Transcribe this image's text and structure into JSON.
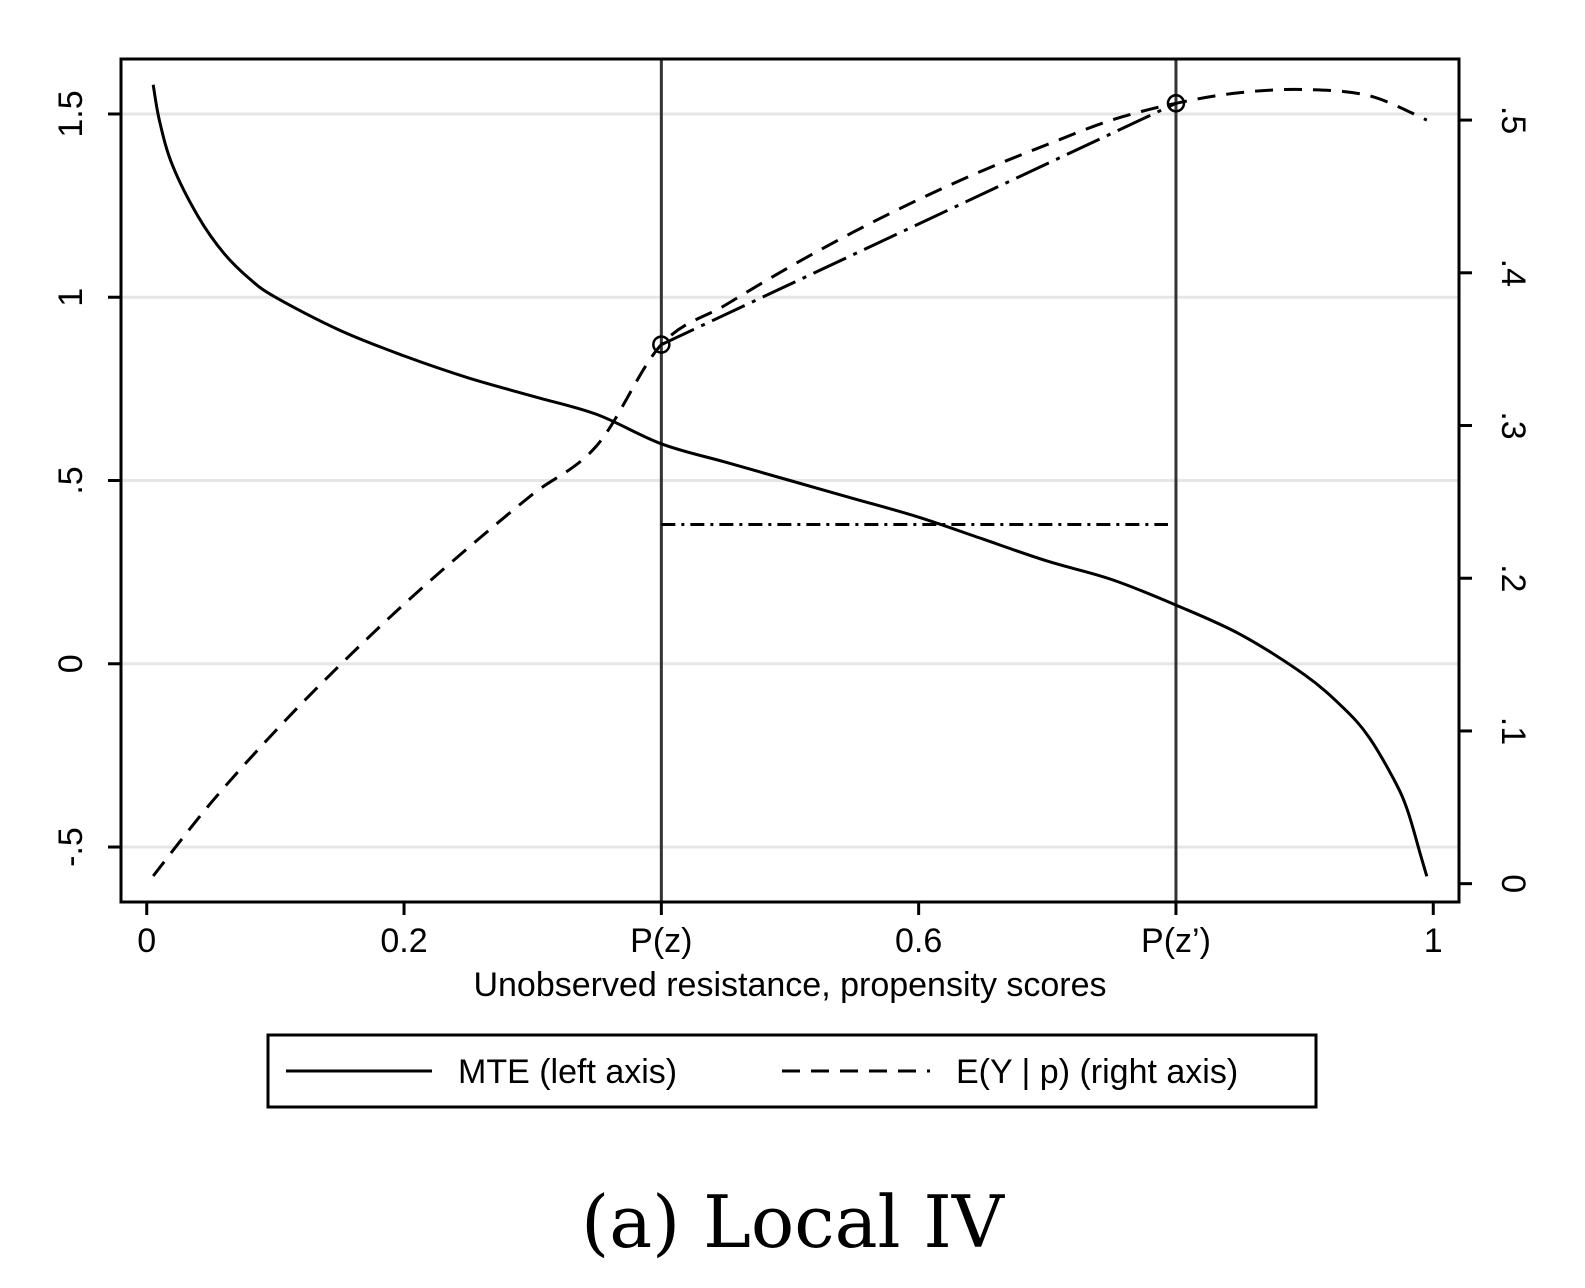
{
  "chart_data": {
    "type": "line",
    "xlabel": "Unobserved resistance, propensity scores",
    "x_ticks": [
      {
        "value": 0,
        "label": "0"
      },
      {
        "value": 0.2,
        "label": "0.2"
      },
      {
        "value": 0.4,
        "label": "P(z)"
      },
      {
        "value": 0.6,
        "label": "0.6"
      },
      {
        "value": 0.8,
        "label": "P(z’)"
      },
      {
        "value": 1,
        "label": "1"
      }
    ],
    "xlim": [
      -0.02,
      1.02
    ],
    "y_left": {
      "ylim": [
        -0.65,
        1.65
      ],
      "ticks": [
        {
          "value": -0.5,
          "label": "-.5"
        },
        {
          "value": 0,
          "label": "0"
        },
        {
          "value": 0.5,
          "label": ".5"
        },
        {
          "value": 1,
          "label": "1"
        },
        {
          "value": 1.5,
          "label": "1.5"
        }
      ]
    },
    "y_right": {
      "ylim": [
        -0.012,
        0.54
      ],
      "ticks": [
        {
          "value": 0,
          "label": "0"
        },
        {
          "value": 0.1,
          "label": ".1"
        },
        {
          "value": 0.2,
          "label": ".2"
        },
        {
          "value": 0.3,
          "label": ".3"
        },
        {
          "value": 0.4,
          "label": ".4"
        },
        {
          "value": 0.5,
          "label": ".5"
        }
      ]
    },
    "grid": true,
    "legend_position": "bottom",
    "series": [
      {
        "name": "MTE (left axis)",
        "axis": "left",
        "style": "solid",
        "x": [
          0.005,
          0.01,
          0.02,
          0.04,
          0.06,
          0.08,
          0.1,
          0.15,
          0.2,
          0.25,
          0.3,
          0.35,
          0.4,
          0.45,
          0.5,
          0.55,
          0.6,
          0.65,
          0.7,
          0.75,
          0.8,
          0.85,
          0.9,
          0.93,
          0.95,
          0.97,
          0.98,
          0.99,
          0.995
        ],
        "y": [
          1.58,
          1.48,
          1.36,
          1.22,
          1.12,
          1.05,
          1.0,
          0.91,
          0.84,
          0.78,
          0.73,
          0.68,
          0.6,
          0.55,
          0.5,
          0.45,
          0.4,
          0.34,
          0.28,
          0.23,
          0.16,
          0.08,
          -0.03,
          -0.12,
          -0.2,
          -0.32,
          -0.4,
          -0.52,
          -0.58
        ]
      },
      {
        "name": "E(Y | p) (right axis)",
        "axis": "right",
        "style": "dashed",
        "x": [
          0.005,
          0.05,
          0.1,
          0.15,
          0.2,
          0.25,
          0.3,
          0.35,
          0.4,
          0.45,
          0.5,
          0.55,
          0.6,
          0.65,
          0.7,
          0.75,
          0.8,
          0.85,
          0.9,
          0.95,
          0.995
        ],
        "y": [
          0.005,
          0.053,
          0.1,
          0.143,
          0.183,
          0.22,
          0.255,
          0.287,
          0.353,
          0.379,
          0.404,
          0.427,
          0.448,
          0.467,
          0.484,
          0.5,
          0.511,
          0.518,
          0.52,
          0.516,
          0.5
        ]
      }
    ],
    "annotations": {
      "vertical_lines_x": [
        0.4,
        0.8
      ],
      "chord": {
        "style": "long-dash-dot",
        "x": [
          0.4,
          0.8
        ],
        "y_right": [
          0.353,
          0.511
        ]
      },
      "markers": [
        {
          "x": 0.4,
          "y_right": 0.353
        },
        {
          "x": 0.8,
          "y_right": 0.511
        }
      ],
      "horizontal_segment": {
        "style": "dash-dot",
        "x": [
          0.4,
          0.8
        ],
        "y_left": 0.38
      }
    }
  },
  "caption": "(a) Local IV"
}
